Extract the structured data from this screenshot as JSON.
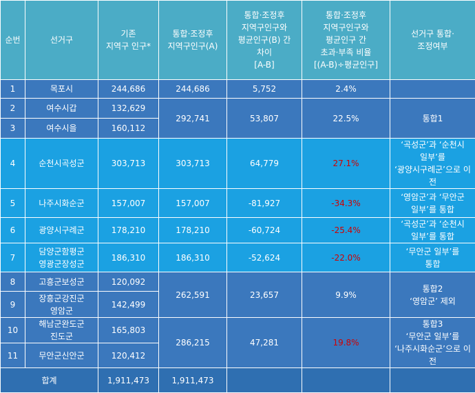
{
  "headers": {
    "no": "순번",
    "district": "선거구",
    "pop_before": [
      "기존",
      "지역구 인구*"
    ],
    "pop_after": [
      "통합·조정후",
      "지역구인구(A)"
    ],
    "diff": [
      "통합·조정후",
      "지역구인구와",
      "평균인구(B) 간",
      "차이",
      "[A-B]"
    ],
    "ratio": [
      "통합·조정후",
      "지역구인구와",
      "평균인구 간",
      "초과·부족 비율",
      "[(A-B)÷평균인구]"
    ],
    "merge": [
      "선거구 통합·",
      "조정여부"
    ]
  },
  "rows": [
    {
      "no": "1",
      "district": "목포시",
      "pop_before": "244,686",
      "pop_after": "244,686",
      "diff": "5,752",
      "ratio": "2.4%",
      "ratio_red": false,
      "merge": []
    },
    {
      "no": "2",
      "district": "여수시갑",
      "pop_before": "132,629",
      "pop_after": "292,741",
      "diff": "53,807",
      "ratio": "22.5%",
      "ratio_red": false,
      "merge": [
        "통합1"
      ]
    },
    {
      "no": "3",
      "district": "여수시을",
      "pop_before": "160,112"
    },
    {
      "no": "4",
      "district": "순천시곡성군",
      "pop_before": "303,713",
      "pop_after": "303,713",
      "diff": "64,779",
      "ratio": "27.1%",
      "ratio_red": true,
      "merge": [
        "‘곡성군’과 ‘순천시",
        "일부’를",
        "‘광양시구례군’으로 이전"
      ]
    },
    {
      "no": "5",
      "district": "나주시화순군",
      "pop_before": "157,007",
      "pop_after": "157,007",
      "diff": "-81,927",
      "ratio": "-34.3%",
      "ratio_red": true,
      "merge": [
        "‘영암군’과 ‘무안군",
        "일부’를 통합"
      ]
    },
    {
      "no": "6",
      "district": "광양시구례군",
      "pop_before": "178,210",
      "pop_after": "178,210",
      "diff": "-60,724",
      "ratio": "-25.4%",
      "ratio_red": true,
      "merge": [
        "‘곡성군’과 ‘순천시",
        "일부’를 통합"
      ]
    },
    {
      "no": "7",
      "district": [
        "담양군함평군",
        "영광군장성군"
      ],
      "pop_before": "186,310",
      "pop_after": "186,310",
      "diff": "-52,624",
      "ratio": "-22.0%",
      "ratio_red": true,
      "merge": [
        "‘무안군 일부’를",
        "통합"
      ]
    },
    {
      "no": "8",
      "district": "고흥군보성군",
      "pop_before": "120,092",
      "pop_after": "262,591",
      "diff": "23,657",
      "ratio": "9.9%",
      "ratio_red": false,
      "merge": [
        "통합2",
        "‘영암군’ 제외"
      ]
    },
    {
      "no": "9",
      "district": [
        "장흥군강진군",
        "영암군"
      ],
      "pop_before": "142,499"
    },
    {
      "no": "10",
      "district": [
        "해남군완도군",
        "진도군"
      ],
      "pop_before": "165,803",
      "pop_after": "286,215",
      "diff": "47,281",
      "ratio": "19.8%",
      "ratio_red": true,
      "merge": [
        "통합3",
        "‘무안군 일부’를",
        "‘나주시화순군’으로 이전"
      ]
    },
    {
      "no": "11",
      "district": "무안군신안군",
      "pop_before": "120,412"
    }
  ],
  "total": {
    "label": "합계",
    "pop_before": "1,911,473",
    "pop_after": "1,911,473"
  }
}
